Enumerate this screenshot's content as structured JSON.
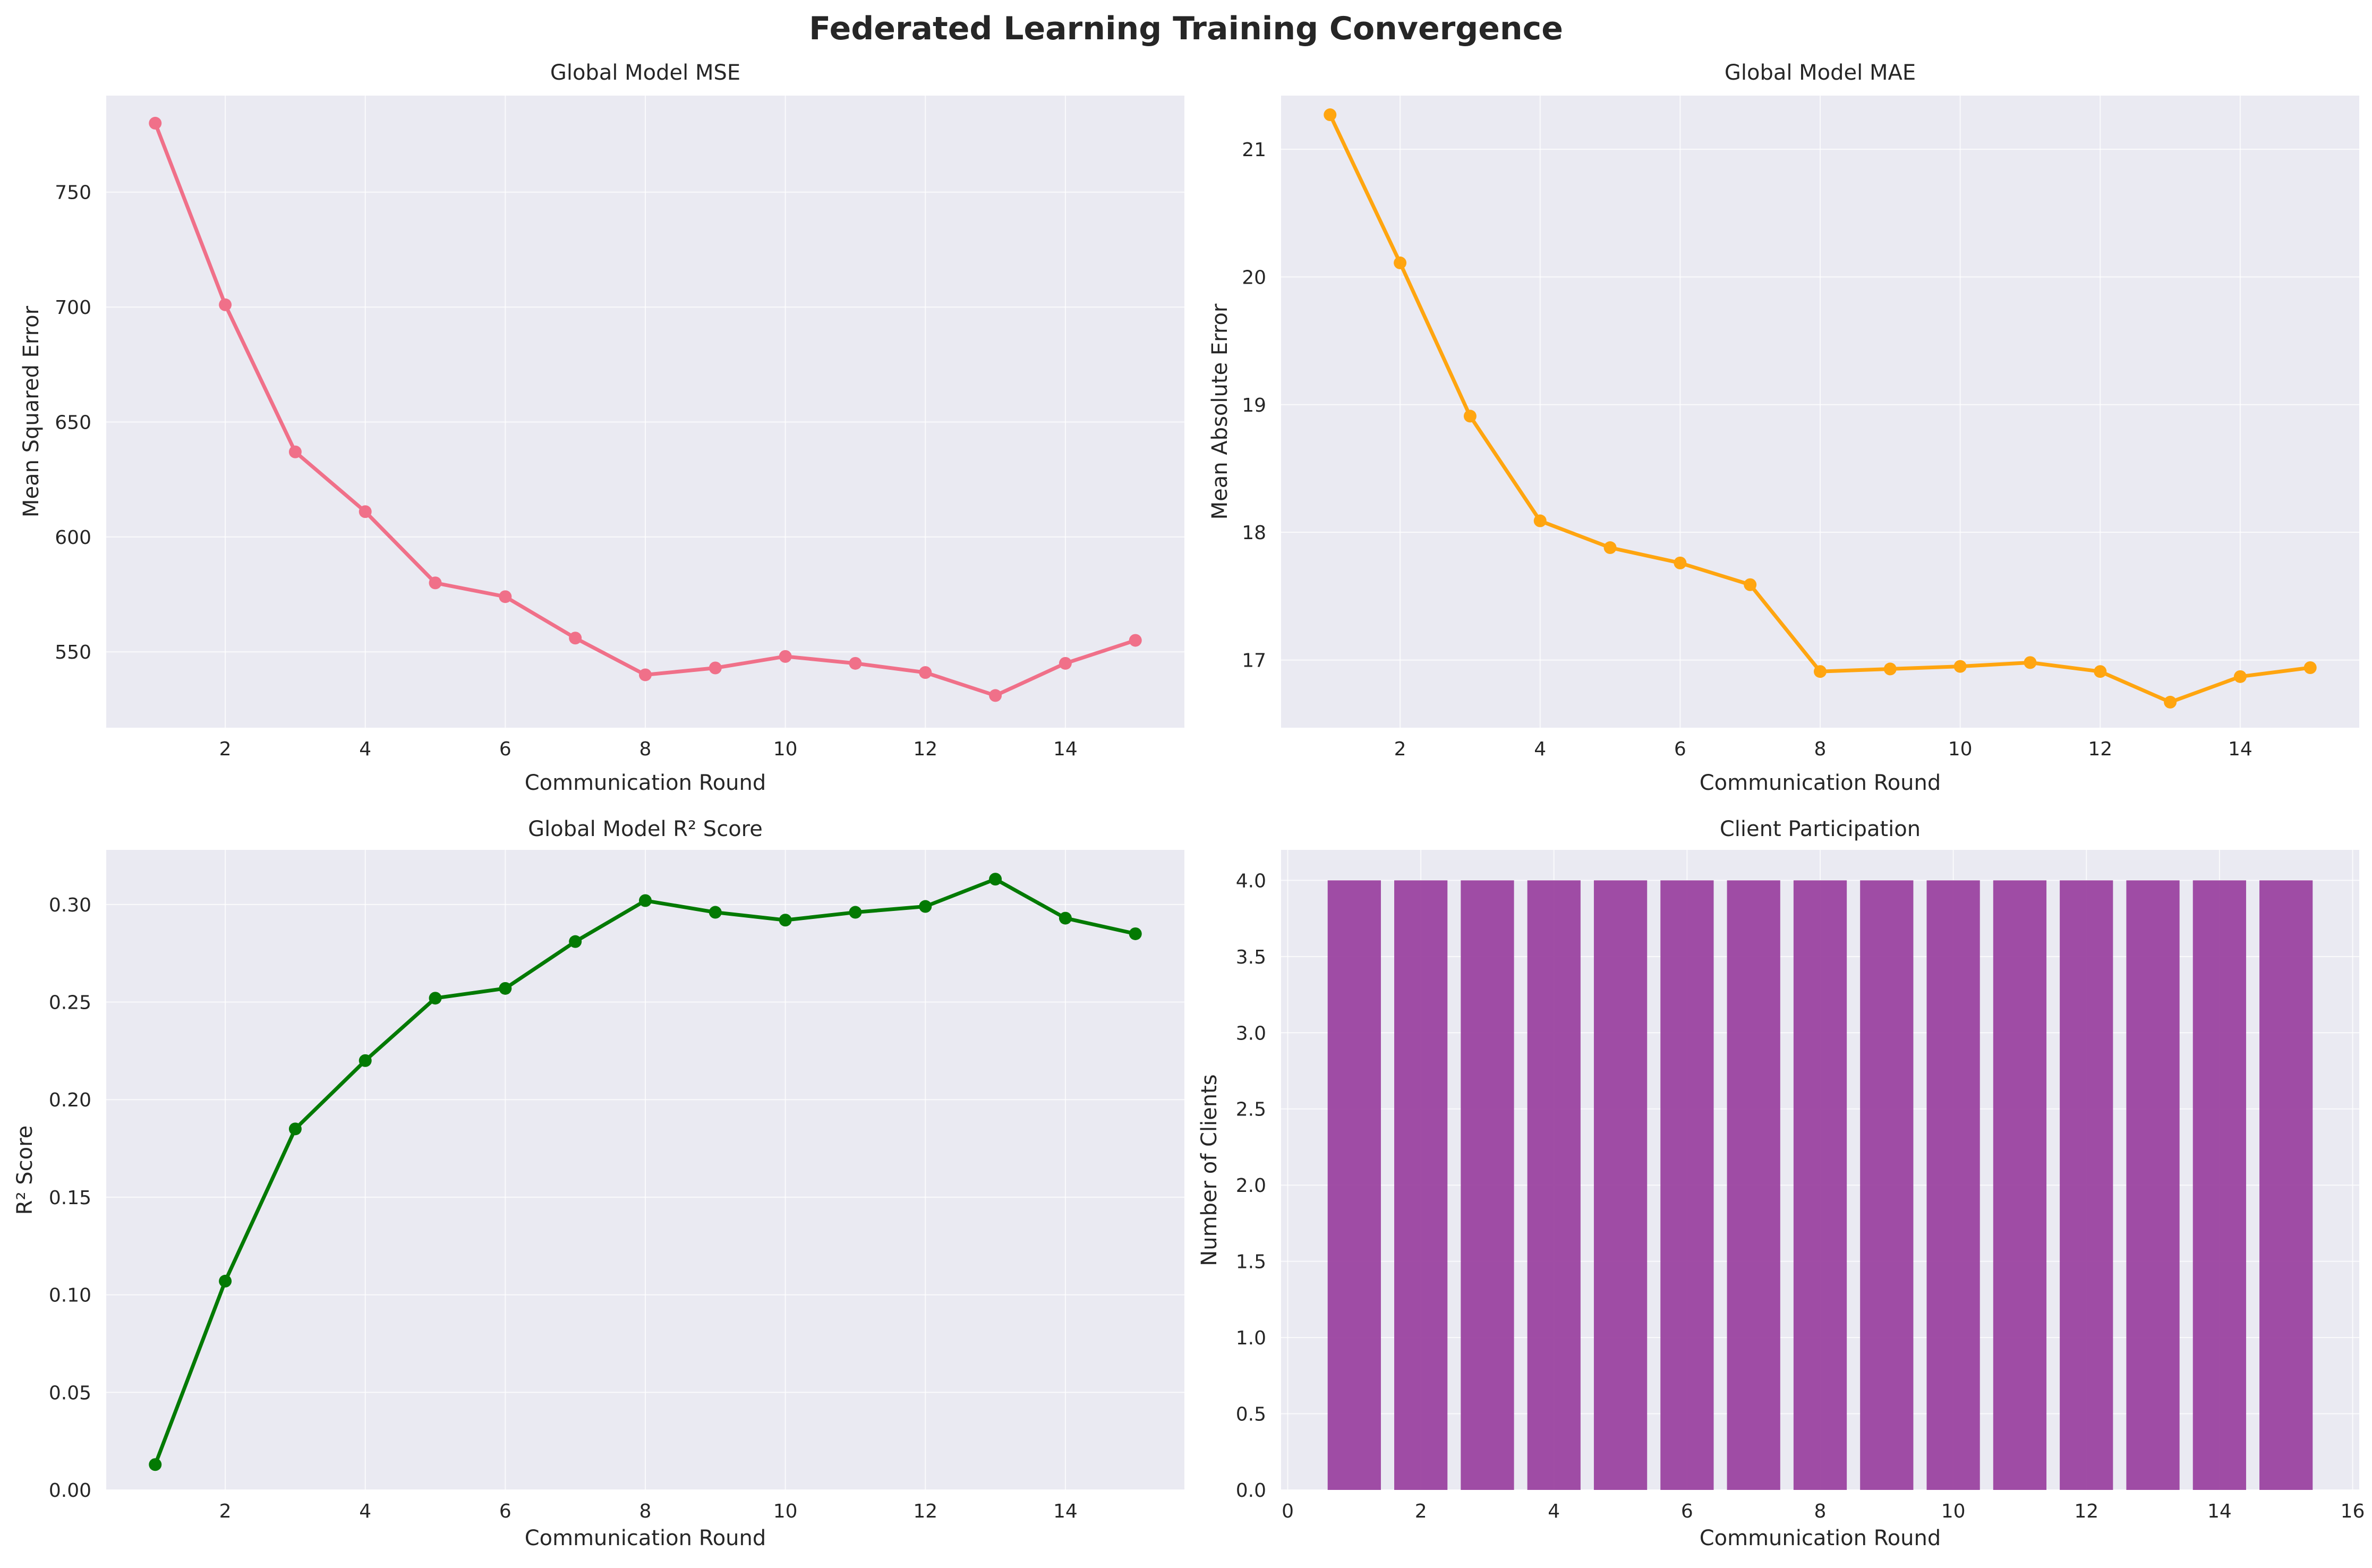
{
  "figure": {
    "title": "Federated Learning Training Convergence"
  },
  "colors": {
    "panel_bg": "#eaeaf2",
    "grid": "#ffffff",
    "mse": "#f07089",
    "mae": "#ffa510",
    "r2": "#037a03",
    "bars": "#9b43a0"
  },
  "chart_data": [
    {
      "type": "line",
      "title": "Global Model MSE",
      "xlabel": "Communication Round",
      "ylabel": "Mean Squared Error",
      "x": [
        1,
        2,
        3,
        4,
        5,
        6,
        7,
        8,
        9,
        10,
        11,
        12,
        13,
        14,
        15
      ],
      "series": [
        {
          "values": [
            780,
            701,
            637,
            611,
            580,
            574,
            556,
            540,
            543,
            548,
            545,
            541,
            531,
            545,
            555
          ]
        }
      ],
      "xlim": [
        0.3,
        15.7
      ],
      "ylim": [
        517,
        792
      ],
      "xticks": [
        2,
        4,
        6,
        8,
        10,
        12,
        14
      ],
      "yticks": [
        550,
        600,
        650,
        700,
        750
      ],
      "grid": true
    },
    {
      "type": "line",
      "title": "Global Model MAE",
      "xlabel": "Communication Round",
      "ylabel": "Mean Absolute Error",
      "x": [
        1,
        2,
        3,
        4,
        5,
        6,
        7,
        8,
        9,
        10,
        11,
        12,
        13,
        14,
        15
      ],
      "series": [
        {
          "values": [
            21.27,
            20.11,
            18.91,
            18.09,
            17.88,
            17.76,
            17.59,
            16.91,
            16.93,
            16.95,
            16.98,
            16.91,
            16.67,
            16.87,
            16.94
          ]
        }
      ],
      "xlim": [
        0.3,
        15.7
      ],
      "ylim": [
        16.47,
        21.42
      ],
      "xticks": [
        2,
        4,
        6,
        8,
        10,
        12,
        14
      ],
      "yticks": [
        17,
        18,
        19,
        20,
        21
      ],
      "grid": true
    },
    {
      "type": "line",
      "title": "Global Model R² Score",
      "xlabel": "Communication Round",
      "ylabel": "R² Score",
      "x": [
        1,
        2,
        3,
        4,
        5,
        6,
        7,
        8,
        9,
        10,
        11,
        12,
        13,
        14,
        15
      ],
      "series": [
        {
          "values": [
            0.013,
            0.107,
            0.185,
            0.22,
            0.252,
            0.257,
            0.281,
            0.302,
            0.296,
            0.292,
            0.296,
            0.299,
            0.313,
            0.293,
            0.285
          ]
        }
      ],
      "xlim": [
        0.3,
        15.7
      ],
      "ylim": [
        0,
        0.328
      ],
      "xticks": [
        2,
        4,
        6,
        8,
        10,
        12,
        14
      ],
      "yticks": [
        0.0,
        0.05,
        0.1,
        0.15,
        0.2,
        0.25,
        0.3
      ],
      "grid": true
    },
    {
      "type": "bar",
      "title": "Client Participation",
      "xlabel": "Communication Round",
      "ylabel": "Number of Clients",
      "categories": [
        1,
        2,
        3,
        4,
        5,
        6,
        7,
        8,
        9,
        10,
        11,
        12,
        13,
        14,
        15
      ],
      "values": [
        4,
        4,
        4,
        4,
        4,
        4,
        4,
        4,
        4,
        4,
        4,
        4,
        4,
        4,
        4
      ],
      "xlim": [
        -0.1,
        16.1
      ],
      "ylim": [
        0,
        4.2
      ],
      "xticks": [
        0,
        2,
        4,
        6,
        8,
        10,
        12,
        14,
        16
      ],
      "yticks": [
        0.0,
        0.5,
        1.0,
        1.5,
        2.0,
        2.5,
        3.0,
        3.5,
        4.0
      ],
      "grid": true
    }
  ]
}
